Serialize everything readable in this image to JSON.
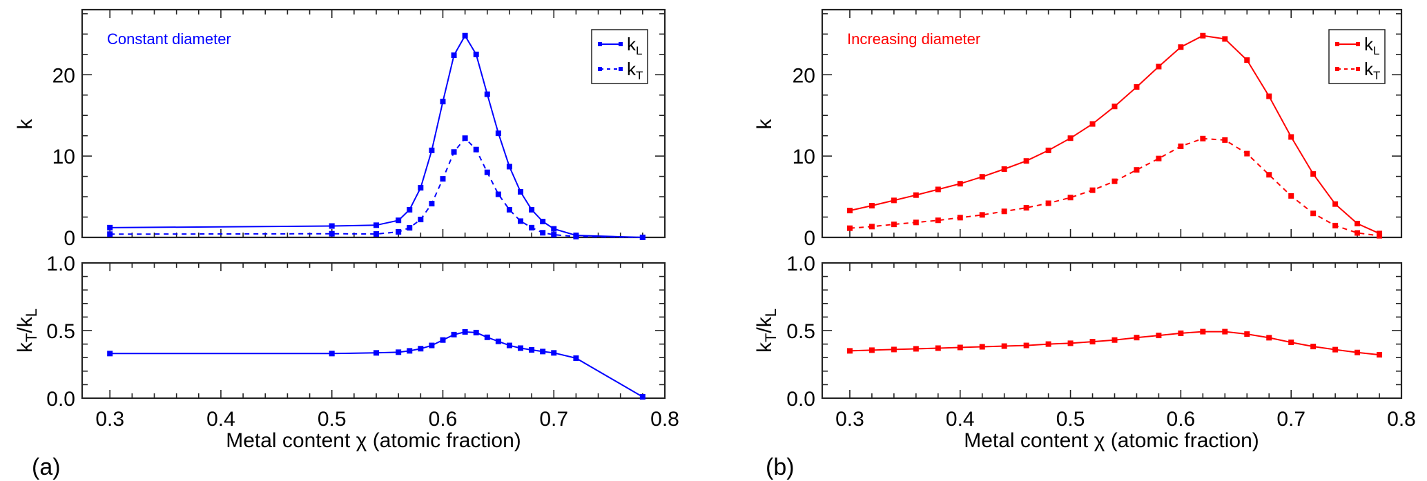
{
  "figure": {
    "xlabel": "Metal content χ (atomic fraction)",
    "ylabel_top": "k",
    "ylabel_bottom": {
      "base1": "k",
      "sub1": "T",
      "slash": "/",
      "base2": "k",
      "sub2": "L"
    },
    "legend": [
      {
        "base": "k",
        "sub": "L",
        "style": "solid"
      },
      {
        "base": "k",
        "sub": "T",
        "style": "dashed"
      }
    ]
  },
  "chart_data": [
    {
      "type": "line",
      "panel_tag": "(a)",
      "annotation": "Constant diameter",
      "color": "#0000ff",
      "subplot": "top",
      "xlabel": "Metal content χ (atomic fraction)",
      "ylabel": "k",
      "xlim": [
        0.275,
        0.8
      ],
      "ylim": [
        0,
        28
      ],
      "xticks": [
        0.3,
        0.4,
        0.5,
        0.6,
        0.7,
        0.8
      ],
      "yticks": [
        0,
        10,
        20
      ],
      "legend_position": "top-right",
      "x": [
        0.3,
        0.5,
        0.54,
        0.56,
        0.57,
        0.58,
        0.59,
        0.6,
        0.61,
        0.62,
        0.63,
        0.64,
        0.65,
        0.66,
        0.67,
        0.68,
        0.69,
        0.7,
        0.72,
        0.78
      ],
      "series": [
        {
          "name": "kL",
          "style": "solid",
          "values": [
            1.2,
            1.4,
            1.5,
            2.1,
            3.4,
            6.1,
            10.7,
            16.7,
            22.4,
            24.8,
            22.5,
            17.6,
            12.8,
            8.7,
            5.6,
            3.4,
            1.95,
            1.05,
            0.25,
            0.0
          ]
        },
        {
          "name": "kT",
          "style": "dashed",
          "values": [
            0.4,
            0.45,
            0.42,
            0.68,
            1.18,
            2.2,
            4.15,
            7.2,
            10.5,
            12.2,
            10.8,
            8.0,
            5.3,
            3.4,
            2.0,
            1.2,
            0.57,
            0.33,
            0.1,
            0.0
          ]
        }
      ]
    },
    {
      "type": "line",
      "panel_tag": "(a)",
      "color": "#0000ff",
      "subplot": "bottom",
      "xlabel": "Metal content χ (atomic fraction)",
      "ylabel": "kT/kL",
      "xlim": [
        0.275,
        0.8
      ],
      "ylim": [
        0,
        1.0
      ],
      "xticks": [
        0.3,
        0.4,
        0.5,
        0.6,
        0.7,
        0.8
      ],
      "yticks": [
        0.0,
        0.5,
        1.0
      ],
      "x": [
        0.3,
        0.5,
        0.54,
        0.56,
        0.57,
        0.58,
        0.59,
        0.6,
        0.61,
        0.62,
        0.63,
        0.64,
        0.65,
        0.66,
        0.67,
        0.68,
        0.69,
        0.7,
        0.72,
        0.78
      ],
      "series": [
        {
          "name": "kT/kL",
          "style": "solid",
          "values": [
            0.33,
            0.33,
            0.335,
            0.34,
            0.35,
            0.366,
            0.39,
            0.43,
            0.47,
            0.49,
            0.485,
            0.45,
            0.42,
            0.39,
            0.37,
            0.357,
            0.345,
            0.335,
            0.296,
            0.01
          ]
        }
      ]
    },
    {
      "type": "line",
      "panel_tag": "(b)",
      "annotation": "Increasing diameter",
      "color": "#ff0000",
      "subplot": "top",
      "xlabel": "Metal content χ (atomic fraction)",
      "ylabel": "k",
      "xlim": [
        0.275,
        0.8
      ],
      "ylim": [
        0,
        28
      ],
      "xticks": [
        0.3,
        0.4,
        0.5,
        0.6,
        0.7,
        0.8
      ],
      "yticks": [
        0,
        10,
        20
      ],
      "legend_position": "top-right",
      "x": [
        0.3,
        0.32,
        0.34,
        0.36,
        0.38,
        0.4,
        0.42,
        0.44,
        0.46,
        0.48,
        0.5,
        0.52,
        0.54,
        0.56,
        0.58,
        0.6,
        0.62,
        0.64,
        0.66,
        0.68,
        0.7,
        0.72,
        0.74,
        0.76,
        0.78
      ],
      "series": [
        {
          "name": "kL",
          "style": "solid",
          "values": [
            3.3,
            3.9,
            4.55,
            5.2,
            5.9,
            6.6,
            7.45,
            8.4,
            9.4,
            10.7,
            12.2,
            13.95,
            16.1,
            18.5,
            21.0,
            23.4,
            24.8,
            24.4,
            21.8,
            17.35,
            12.35,
            7.8,
            4.1,
            1.7,
            0.48
          ]
        },
        {
          "name": "kT",
          "style": "dashed",
          "values": [
            1.13,
            1.33,
            1.6,
            1.84,
            2.1,
            2.43,
            2.77,
            3.2,
            3.64,
            4.2,
            4.9,
            5.8,
            6.9,
            8.3,
            9.7,
            11.2,
            12.15,
            11.97,
            10.3,
            7.7,
            5.1,
            2.95,
            1.45,
            0.55,
            0.2
          ]
        }
      ]
    },
    {
      "type": "line",
      "panel_tag": "(b)",
      "color": "#ff0000",
      "subplot": "bottom",
      "xlabel": "Metal content χ (atomic fraction)",
      "ylabel": "kT/kL",
      "xlim": [
        0.275,
        0.8
      ],
      "ylim": [
        0,
        1.0
      ],
      "xticks": [
        0.3,
        0.4,
        0.5,
        0.6,
        0.7,
        0.8
      ],
      "yticks": [
        0.0,
        0.5,
        1.0
      ],
      "x": [
        0.3,
        0.32,
        0.34,
        0.36,
        0.38,
        0.4,
        0.42,
        0.44,
        0.46,
        0.48,
        0.5,
        0.52,
        0.54,
        0.56,
        0.58,
        0.6,
        0.62,
        0.64,
        0.66,
        0.68,
        0.7,
        0.72,
        0.74,
        0.76,
        0.78
      ],
      "series": [
        {
          "name": "kT/kL",
          "style": "solid",
          "values": [
            0.35,
            0.355,
            0.36,
            0.365,
            0.37,
            0.375,
            0.38,
            0.385,
            0.39,
            0.4,
            0.406,
            0.418,
            0.43,
            0.448,
            0.464,
            0.48,
            0.492,
            0.492,
            0.474,
            0.447,
            0.413,
            0.382,
            0.359,
            0.338,
            0.321
          ]
        }
      ]
    }
  ]
}
